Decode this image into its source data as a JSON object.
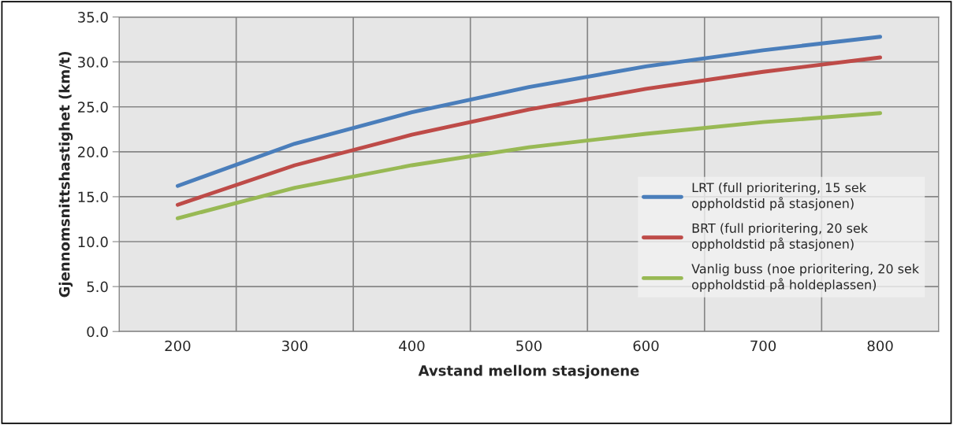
{
  "chart_data": {
    "type": "line",
    "xlabel": "Avstand mellom stasjonene",
    "ylabel": "Gjennomsnittshastighet (km/t)",
    "categories": [
      "200",
      "300",
      "400",
      "500",
      "600",
      "700",
      "800"
    ],
    "series": [
      {
        "name": "LRT (full prioritering, 15 sek\noppholdstid på stasjonen)",
        "color": "#4a7ebb",
        "values": [
          16.2,
          20.9,
          24.4,
          27.2,
          29.5,
          31.3,
          32.8
        ]
      },
      {
        "name": "BRT (full prioritering, 20 sek\noppholdstid på stasjonen)",
        "color": "#be4b48",
        "values": [
          14.1,
          18.5,
          21.9,
          24.7,
          27.0,
          28.9,
          30.5
        ]
      },
      {
        "name": "Vanlig buss (noe prioritering, 20 sek\noppholdstid på holdeplassen)",
        "color": "#98b954",
        "values": [
          12.6,
          16.0,
          18.5,
          20.5,
          22.0,
          23.3,
          24.3
        ]
      }
    ],
    "ylim": [
      0,
      35
    ],
    "yticks": [
      {
        "value": 0,
        "label": "0.0"
      },
      {
        "value": 5,
        "label": "5.0"
      },
      {
        "value": 10,
        "label": "10.0"
      },
      {
        "value": 15,
        "label": "15.0"
      },
      {
        "value": 20,
        "label": "20.0"
      },
      {
        "value": 25,
        "label": "25.0"
      },
      {
        "value": 30,
        "label": "30.0"
      },
      {
        "value": 35,
        "label": "35.0"
      }
    ],
    "grid": true,
    "legend": "right",
    "marker": "none",
    "line_style": "solid"
  }
}
